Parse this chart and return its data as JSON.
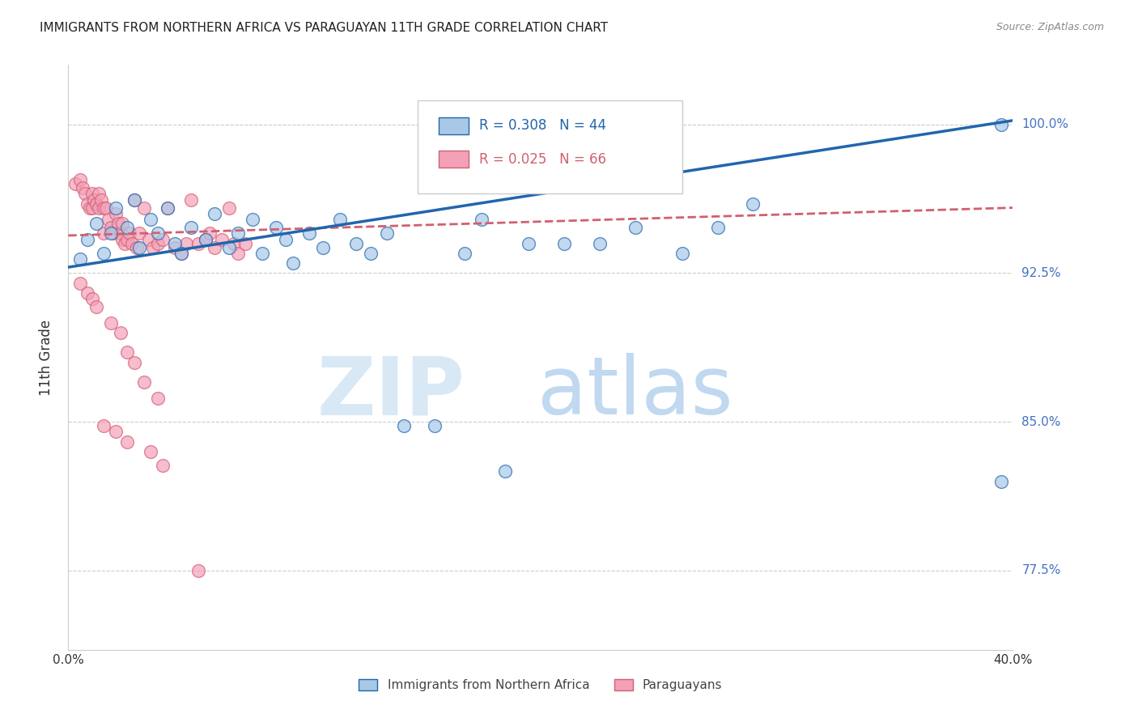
{
  "title": "IMMIGRANTS FROM NORTHERN AFRICA VS PARAGUAYAN 11TH GRADE CORRELATION CHART",
  "source": "Source: ZipAtlas.com",
  "ylabel": "11th Grade",
  "ytick_labels": [
    "100.0%",
    "92.5%",
    "85.0%",
    "77.5%"
  ],
  "ytick_values": [
    1.0,
    0.925,
    0.85,
    0.775
  ],
  "xlim": [
    0.0,
    0.4
  ],
  "ylim": [
    0.735,
    1.03
  ],
  "legend_blue_r": "R = 0.308",
  "legend_blue_n": "N = 44",
  "legend_pink_r": "R = 0.025",
  "legend_pink_n": "N = 66",
  "legend_label_blue": "Immigrants from Northern Africa",
  "legend_label_pink": "Paraguayans",
  "blue_color": "#a8c8e8",
  "pink_color": "#f4a0b8",
  "trendline_blue_color": "#2166ac",
  "trendline_pink_color": "#d06070",
  "blue_scatter_x": [
    0.005,
    0.008,
    0.012,
    0.015,
    0.018,
    0.02,
    0.025,
    0.028,
    0.03,
    0.035,
    0.038,
    0.042,
    0.045,
    0.048,
    0.052,
    0.058,
    0.062,
    0.068,
    0.072,
    0.078,
    0.082,
    0.088,
    0.092,
    0.095,
    0.102,
    0.108,
    0.115,
    0.122,
    0.128,
    0.135,
    0.142,
    0.155,
    0.168,
    0.175,
    0.185,
    0.195,
    0.21,
    0.225,
    0.24,
    0.26,
    0.275,
    0.29,
    0.395,
    0.395
  ],
  "blue_scatter_y": [
    0.932,
    0.942,
    0.95,
    0.935,
    0.945,
    0.958,
    0.948,
    0.962,
    0.938,
    0.952,
    0.945,
    0.958,
    0.94,
    0.935,
    0.948,
    0.942,
    0.955,
    0.938,
    0.945,
    0.952,
    0.935,
    0.948,
    0.942,
    0.93,
    0.945,
    0.938,
    0.952,
    0.94,
    0.935,
    0.945,
    0.848,
    0.848,
    0.935,
    0.952,
    0.825,
    0.94,
    0.94,
    0.94,
    0.948,
    0.935,
    0.948,
    0.96,
    0.82,
    1.0
  ],
  "pink_scatter_x": [
    0.003,
    0.005,
    0.006,
    0.007,
    0.008,
    0.009,
    0.01,
    0.01,
    0.011,
    0.012,
    0.013,
    0.013,
    0.014,
    0.015,
    0.015,
    0.016,
    0.017,
    0.018,
    0.019,
    0.02,
    0.021,
    0.022,
    0.023,
    0.023,
    0.024,
    0.025,
    0.026,
    0.027,
    0.028,
    0.029,
    0.03,
    0.032,
    0.034,
    0.036,
    0.038,
    0.04,
    0.042,
    0.045,
    0.048,
    0.05,
    0.052,
    0.055,
    0.058,
    0.06,
    0.062,
    0.065,
    0.068,
    0.07,
    0.072,
    0.075,
    0.005,
    0.008,
    0.01,
    0.012,
    0.018,
    0.022,
    0.025,
    0.028,
    0.032,
    0.038,
    0.015,
    0.02,
    0.025,
    0.035,
    0.04,
    0.055
  ],
  "pink_scatter_y": [
    0.97,
    0.972,
    0.968,
    0.965,
    0.96,
    0.958,
    0.965,
    0.958,
    0.962,
    0.96,
    0.958,
    0.965,
    0.962,
    0.958,
    0.945,
    0.958,
    0.952,
    0.948,
    0.945,
    0.955,
    0.95,
    0.945,
    0.942,
    0.95,
    0.94,
    0.942,
    0.945,
    0.94,
    0.962,
    0.938,
    0.945,
    0.958,
    0.942,
    0.938,
    0.94,
    0.942,
    0.958,
    0.938,
    0.935,
    0.94,
    0.962,
    0.94,
    0.942,
    0.945,
    0.938,
    0.942,
    0.958,
    0.94,
    0.935,
    0.94,
    0.92,
    0.915,
    0.912,
    0.908,
    0.9,
    0.895,
    0.885,
    0.88,
    0.87,
    0.862,
    0.848,
    0.845,
    0.84,
    0.835,
    0.828,
    0.775
  ]
}
